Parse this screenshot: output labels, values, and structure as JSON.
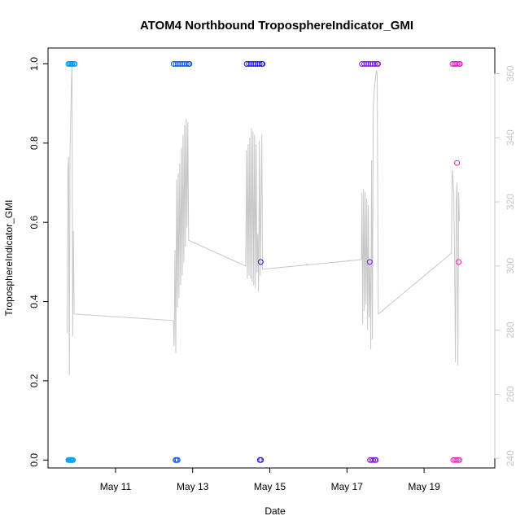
{
  "chart_data": {
    "type": "scatter",
    "title": "ATOM4 Northbound TroposphereIndicator_GMI",
    "xlabel": "Date",
    "ylabel": "TroposphereIndicator_GMI",
    "x_unit": "days",
    "xlim": [
      "2016-05-09T06:00",
      "2016-05-20T20:00"
    ],
    "ylim": [
      -0.02,
      1.04
    ],
    "y2lim": [
      237,
      368
    ],
    "x_ticks": [
      {
        "value": "2016-05-11",
        "label": "May 11"
      },
      {
        "value": "2016-05-13",
        "label": "May 13"
      },
      {
        "value": "2016-05-15",
        "label": "May 15"
      },
      {
        "value": "2016-05-17",
        "label": "May 17"
      },
      {
        "value": "2016-05-19",
        "label": "May 19"
      }
    ],
    "y_ticks": [
      "0.0",
      "0.2",
      "0.4",
      "0.6",
      "0.8",
      "1.0"
    ],
    "y2_ticks": [
      "240",
      "260",
      "280",
      "300",
      "320",
      "340",
      "360"
    ],
    "series": [
      {
        "color": "#00A0F0",
        "points": [
          {
            "x": "2016-05-09T18:40",
            "y": 1.0
          },
          {
            "x": "2016-05-09T19:20",
            "y": 1.0
          },
          {
            "x": "2016-05-09T20:00",
            "y": 1.0
          },
          {
            "x": "2016-05-09T20:40",
            "y": 1.0
          },
          {
            "x": "2016-05-09T21:10",
            "y": 1.0
          },
          {
            "x": "2016-05-09T22:10",
            "y": 1.0
          },
          {
            "x": "2016-05-09T22:40",
            "y": 1.0
          },
          {
            "x": "2016-05-09T18:40",
            "y": 0.0
          },
          {
            "x": "2016-05-09T19:10",
            "y": 0.0
          },
          {
            "x": "2016-05-09T19:40",
            "y": 0.0
          },
          {
            "x": "2016-05-09T20:10",
            "y": 0.0
          },
          {
            "x": "2016-05-09T20:40",
            "y": 0.0
          },
          {
            "x": "2016-05-09T21:10",
            "y": 0.0
          },
          {
            "x": "2016-05-09T21:30",
            "y": 0.0
          }
        ]
      },
      {
        "color": "#0055F5",
        "points": [
          {
            "x": "2016-05-12T12:10",
            "y": 1.0
          },
          {
            "x": "2016-05-12T13:30",
            "y": 1.0
          },
          {
            "x": "2016-05-12T14:50",
            "y": 1.0
          },
          {
            "x": "2016-05-12T16:10",
            "y": 1.0
          },
          {
            "x": "2016-05-12T17:30",
            "y": 1.0
          },
          {
            "x": "2016-05-12T18:50",
            "y": 1.0
          },
          {
            "x": "2016-05-12T20:10",
            "y": 1.0
          },
          {
            "x": "2016-05-12T21:30",
            "y": 1.0
          },
          {
            "x": "2016-05-12T22:00",
            "y": 1.0
          },
          {
            "x": "2016-05-12T13:20",
            "y": 0.0
          },
          {
            "x": "2016-05-12T14:00",
            "y": 0.0
          },
          {
            "x": "2016-05-12T14:40",
            "y": 0.0
          }
        ]
      },
      {
        "color": "#1E10F0",
        "points": [
          {
            "x": "2016-05-14T09:40",
            "y": 1.0
          },
          {
            "x": "2016-05-14T11:00",
            "y": 1.0
          },
          {
            "x": "2016-05-14T12:20",
            "y": 1.0
          },
          {
            "x": "2016-05-14T13:40",
            "y": 1.0
          },
          {
            "x": "2016-05-14T15:00",
            "y": 1.0
          },
          {
            "x": "2016-05-14T16:20",
            "y": 1.0
          },
          {
            "x": "2016-05-14T17:40",
            "y": 1.0
          },
          {
            "x": "2016-05-14T19:00",
            "y": 1.0
          },
          {
            "x": "2016-05-14T19:30",
            "y": 1.0
          },
          {
            "x": "2016-05-14T18:20",
            "y": 0.5
          },
          {
            "x": "2016-05-14T17:50",
            "y": 0.0
          },
          {
            "x": "2016-05-14T18:30",
            "y": 0.0
          }
        ]
      },
      {
        "color": "#8010F0",
        "points": [
          {
            "x": "2016-05-17T09:20",
            "y": 1.0
          },
          {
            "x": "2016-05-17T10:40",
            "y": 1.0
          },
          {
            "x": "2016-05-17T12:00",
            "y": 1.0
          },
          {
            "x": "2016-05-17T13:20",
            "y": 1.0
          },
          {
            "x": "2016-05-17T14:40",
            "y": 1.0
          },
          {
            "x": "2016-05-17T16:00",
            "y": 1.0
          },
          {
            "x": "2016-05-17T17:20",
            "y": 1.0
          },
          {
            "x": "2016-05-17T18:40",
            "y": 1.0
          },
          {
            "x": "2016-05-17T19:20",
            "y": 1.0
          },
          {
            "x": "2016-05-17T14:10",
            "y": 0.5
          },
          {
            "x": "2016-05-17T14:20",
            "y": 0.0
          },
          {
            "x": "2016-05-17T15:20",
            "y": 0.0
          },
          {
            "x": "2016-05-17T16:20",
            "y": 0.0
          },
          {
            "x": "2016-05-17T17:20",
            "y": 0.0
          },
          {
            "x": "2016-05-17T18:00",
            "y": 0.0
          }
        ]
      },
      {
        "color": "#F020C0",
        "points": [
          {
            "x": "2016-05-19T17:40",
            "y": 1.0
          },
          {
            "x": "2016-05-19T18:40",
            "y": 1.0
          },
          {
            "x": "2016-05-19T19:40",
            "y": 1.0
          },
          {
            "x": "2016-05-19T20:40",
            "y": 1.0
          },
          {
            "x": "2016-05-19T21:40",
            "y": 1.0
          },
          {
            "x": "2016-05-19T22:20",
            "y": 1.0
          },
          {
            "x": "2016-05-19T20:30",
            "y": 0.75
          },
          {
            "x": "2016-05-19T21:30",
            "y": 0.5
          },
          {
            "x": "2016-05-19T18:10",
            "y": 0.0
          },
          {
            "x": "2016-05-19T19:10",
            "y": 0.0
          },
          {
            "x": "2016-05-19T20:10",
            "y": 0.0
          },
          {
            "x": "2016-05-19T21:10",
            "y": 0.0
          },
          {
            "x": "2016-05-19T22:00",
            "y": 0.0
          }
        ]
      }
    ],
    "line": {
      "color": "#c8c8c8",
      "axis": "right",
      "points": [
        {
          "x": "2016-05-09T18:00",
          "y": 279
        },
        {
          "x": "2016-05-09T18:25",
          "y": 330
        },
        {
          "x": "2016-05-09T18:50",
          "y": 334
        },
        {
          "x": "2016-05-09T19:15",
          "y": 266
        },
        {
          "x": "2016-05-09T19:40",
          "y": 335
        },
        {
          "x": "2016-05-09T20:05",
          "y": 345
        },
        {
          "x": "2016-05-09T20:30",
          "y": 355
        },
        {
          "x": "2016-05-09T20:55",
          "y": 364
        },
        {
          "x": "2016-05-09T21:20",
          "y": 278
        },
        {
          "x": "2016-05-09T21:45",
          "y": 311
        },
        {
          "x": "2016-05-09T22:15",
          "y": 285
        },
        {
          "x": "2016-05-12T12:00",
          "y": 283
        },
        {
          "x": "2016-05-12T12:30",
          "y": 275
        },
        {
          "x": "2016-05-12T13:00",
          "y": 305
        },
        {
          "x": "2016-05-12T13:30",
          "y": 273
        },
        {
          "x": "2016-05-12T14:00",
          "y": 327
        },
        {
          "x": "2016-05-12T14:30",
          "y": 287
        },
        {
          "x": "2016-05-12T15:00",
          "y": 329
        },
        {
          "x": "2016-05-12T15:30",
          "y": 290
        },
        {
          "x": "2016-05-12T16:00",
          "y": 332
        },
        {
          "x": "2016-05-12T16:30",
          "y": 294
        },
        {
          "x": "2016-05-12T17:00",
          "y": 337
        },
        {
          "x": "2016-05-12T17:30",
          "y": 297
        },
        {
          "x": "2016-05-12T18:00",
          "y": 341
        },
        {
          "x": "2016-05-12T18:30",
          "y": 301
        },
        {
          "x": "2016-05-12T19:00",
          "y": 344
        },
        {
          "x": "2016-05-12T19:30",
          "y": 306
        },
        {
          "x": "2016-05-12T20:00",
          "y": 346
        },
        {
          "x": "2016-05-12T20:30",
          "y": 312
        },
        {
          "x": "2016-05-12T21:00",
          "y": 345
        },
        {
          "x": "2016-05-12T21:30",
          "y": 308
        },
        {
          "x": "2016-05-14T09:00",
          "y": 300
        },
        {
          "x": "2016-05-14T09:30",
          "y": 336
        },
        {
          "x": "2016-05-14T10:00",
          "y": 296
        },
        {
          "x": "2016-05-14T10:30",
          "y": 338
        },
        {
          "x": "2016-05-14T11:00",
          "y": 297
        },
        {
          "x": "2016-05-14T11:30",
          "y": 340
        },
        {
          "x": "2016-05-14T12:00",
          "y": 296
        },
        {
          "x": "2016-05-14T12:30",
          "y": 343
        },
        {
          "x": "2016-05-14T13:00",
          "y": 295
        },
        {
          "x": "2016-05-14T13:30",
          "y": 342
        },
        {
          "x": "2016-05-14T14:00",
          "y": 294
        },
        {
          "x": "2016-05-14T14:30",
          "y": 341
        },
        {
          "x": "2016-05-14T15:00",
          "y": 293
        },
        {
          "x": "2016-05-14T15:30",
          "y": 338
        },
        {
          "x": "2016-05-14T16:00",
          "y": 298
        },
        {
          "x": "2016-05-14T16:30",
          "y": 310
        },
        {
          "x": "2016-05-14T17:00",
          "y": 292
        },
        {
          "x": "2016-05-14T17:30",
          "y": 339
        },
        {
          "x": "2016-05-14T18:00",
          "y": 297
        },
        {
          "x": "2016-05-14T19:00",
          "y": 341
        },
        {
          "x": "2016-05-14T19:30",
          "y": 299
        },
        {
          "x": "2016-05-17T09:00",
          "y": 302
        },
        {
          "x": "2016-05-17T09:20",
          "y": 323
        },
        {
          "x": "2016-05-17T09:50",
          "y": 282
        },
        {
          "x": "2016-05-17T10:20",
          "y": 324
        },
        {
          "x": "2016-05-17T10:50",
          "y": 286
        },
        {
          "x": "2016-05-17T11:20",
          "y": 323
        },
        {
          "x": "2016-05-17T11:50",
          "y": 288
        },
        {
          "x": "2016-05-17T12:20",
          "y": 321
        },
        {
          "x": "2016-05-17T12:50",
          "y": 280
        },
        {
          "x": "2016-05-17T13:20",
          "y": 319
        },
        {
          "x": "2016-05-17T13:50",
          "y": 284
        },
        {
          "x": "2016-05-17T14:20",
          "y": 302
        },
        {
          "x": "2016-05-17T14:50",
          "y": 274
        },
        {
          "x": "2016-05-17T15:20",
          "y": 333
        },
        {
          "x": "2016-05-17T15:50",
          "y": 277
        },
        {
          "x": "2016-05-17T16:20",
          "y": 349
        },
        {
          "x": "2016-05-17T16:50",
          "y": 354
        },
        {
          "x": "2016-05-17T17:20",
          "y": 356
        },
        {
          "x": "2016-05-17T17:50",
          "y": 359
        },
        {
          "x": "2016-05-17T18:20",
          "y": 361
        },
        {
          "x": "2016-05-17T18:50",
          "y": 360
        },
        {
          "x": "2016-05-17T19:30",
          "y": 285
        },
        {
          "x": "2016-05-19T17:00",
          "y": 304
        },
        {
          "x": "2016-05-19T17:30",
          "y": 330
        },
        {
          "x": "2016-05-19T18:00",
          "y": 327
        },
        {
          "x": "2016-05-19T18:30",
          "y": 322
        },
        {
          "x": "2016-05-19T19:00",
          "y": 302
        },
        {
          "x": "2016-05-19T19:30",
          "y": 270
        },
        {
          "x": "2016-05-19T20:00",
          "y": 320
        },
        {
          "x": "2016-05-19T20:30",
          "y": 326
        },
        {
          "x": "2016-05-19T21:00",
          "y": 269
        },
        {
          "x": "2016-05-19T21:30",
          "y": 323
        },
        {
          "x": "2016-05-19T22:00",
          "y": 314
        }
      ]
    }
  }
}
